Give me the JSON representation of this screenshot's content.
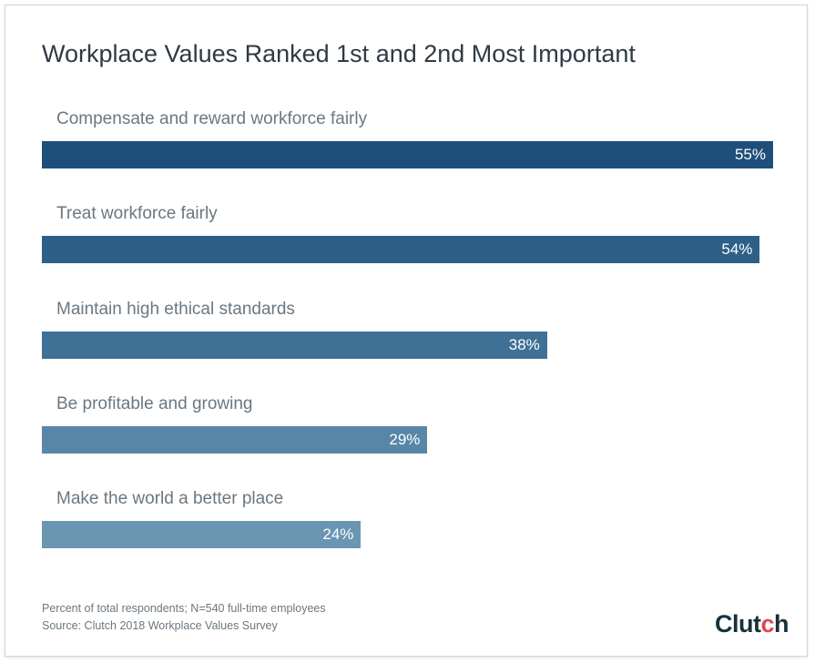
{
  "chart_data": {
    "type": "bar",
    "orientation": "horizontal",
    "title": "Workplace Values Ranked 1st and 2nd Most Important",
    "categories": [
      "Compensate and reward workforce fairly",
      "Treat workforce fairly",
      "Maintain high ethical standards",
      "Be profitable and growing",
      "Make the world a better place"
    ],
    "values": [
      55,
      54,
      38,
      29,
      24
    ],
    "data_labels": [
      "55%",
      "54%",
      "38%",
      "29%",
      "24%"
    ],
    "colors": [
      "#1e4f7a",
      "#2d5f87",
      "#3f7096",
      "#5886a6",
      "#6a96b2"
    ],
    "xlim": [
      0,
      55
    ],
    "grid": false,
    "legend": "none"
  },
  "footer": {
    "note": "Percent of total respondents; N=540 full-time employees",
    "source": "Source: Clutch 2018 Workplace Values Survey"
  },
  "logo": {
    "text": "Clutch",
    "accent": "#e0474c"
  }
}
